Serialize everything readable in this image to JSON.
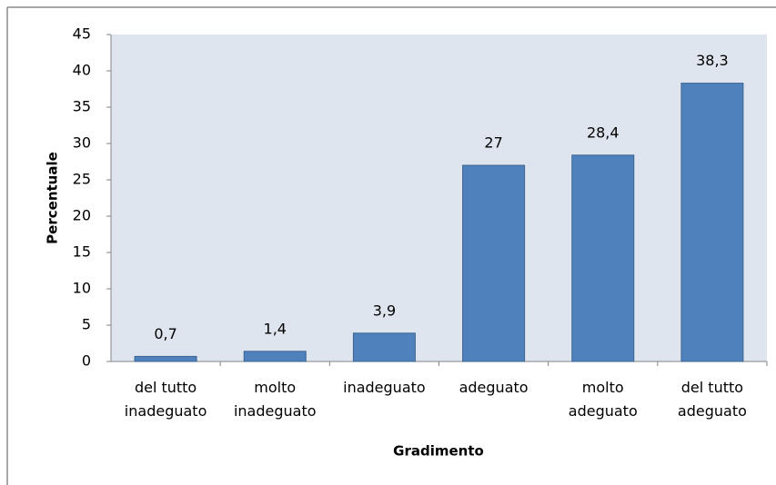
{
  "chart_data": {
    "type": "bar",
    "categories": [
      "del tutto\ninadeguato",
      "molto\ninadeguato",
      "inadeguato",
      "adeguato",
      "molto\nadeguato",
      "del tutto\nadeguato"
    ],
    "values": [
      0.7,
      1.4,
      3.9,
      27,
      28.4,
      38.3
    ],
    "value_labels": [
      "0,7",
      "1,4",
      "3,9",
      "27",
      "28,4",
      "38,3"
    ],
    "color": "#4f81bd",
    "ylim": [
      0,
      45
    ],
    "yticks": [
      0,
      5,
      10,
      15,
      20,
      25,
      30,
      35,
      40,
      45
    ],
    "y_label": "Percentuale",
    "x_label": "Gradimento",
    "grid": false
  }
}
